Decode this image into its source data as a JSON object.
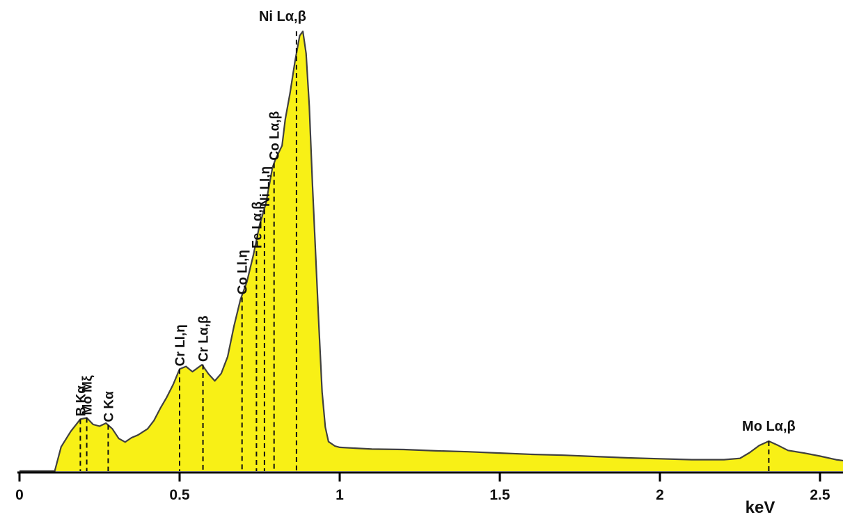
{
  "chart_data": {
    "type": "area",
    "title": "",
    "xlabel": "keV",
    "ylabel": "",
    "xlim": [
      0,
      2.6
    ],
    "ylim": [
      0,
      1
    ],
    "grid": false,
    "x_ticks": [
      0,
      0.5,
      1,
      1.5,
      2,
      2.5
    ],
    "x_tick_labels": [
      "0",
      "0.5",
      "1",
      "1.5",
      "2",
      "2.5"
    ],
    "fill_color": "#f8f016",
    "line_color": "#404040",
    "spectrum": {
      "x": [
        0.0,
        0.11,
        0.13,
        0.16,
        0.19,
        0.21,
        0.23,
        0.25,
        0.27,
        0.29,
        0.31,
        0.33,
        0.35,
        0.37,
        0.4,
        0.42,
        0.44,
        0.46,
        0.48,
        0.5,
        0.52,
        0.54,
        0.57,
        0.59,
        0.61,
        0.63,
        0.65,
        0.67,
        0.69,
        0.71,
        0.73,
        0.75,
        0.77,
        0.78,
        0.79,
        0.8,
        0.82,
        0.83,
        0.845,
        0.86,
        0.875,
        0.885,
        0.895,
        0.905,
        0.915,
        0.925,
        0.935,
        0.945,
        0.955,
        0.965,
        0.985,
        1.0,
        1.1,
        1.2,
        1.3,
        1.4,
        1.5,
        1.6,
        1.7,
        1.8,
        1.9,
        2.0,
        2.1,
        2.2,
        2.25,
        2.28,
        2.31,
        2.34,
        2.37,
        2.4,
        2.45,
        2.5,
        2.55,
        2.6
      ],
      "y": [
        0.0,
        0.0,
        0.055,
        0.09,
        0.118,
        0.121,
        0.106,
        0.102,
        0.109,
        0.096,
        0.074,
        0.066,
        0.076,
        0.082,
        0.096,
        0.115,
        0.143,
        0.168,
        0.197,
        0.232,
        0.238,
        0.226,
        0.242,
        0.221,
        0.205,
        0.222,
        0.26,
        0.33,
        0.39,
        0.43,
        0.49,
        0.56,
        0.61,
        0.65,
        0.69,
        0.71,
        0.74,
        0.8,
        0.86,
        0.93,
        0.99,
        1.0,
        0.95,
        0.83,
        0.65,
        0.49,
        0.33,
        0.18,
        0.1,
        0.067,
        0.057,
        0.054,
        0.05,
        0.049,
        0.046,
        0.044,
        0.041,
        0.038,
        0.036,
        0.033,
        0.03,
        0.028,
        0.026,
        0.026,
        0.029,
        0.042,
        0.058,
        0.068,
        0.058,
        0.047,
        0.041,
        0.034,
        0.026,
        0.021
      ]
    },
    "peak_markers": [
      {
        "label": "B Kα",
        "x": 0.19,
        "y": 0.118,
        "orientation": "vertical"
      },
      {
        "label": "Mo Mξ",
        "x": 0.21,
        "y": 0.121,
        "orientation": "vertical"
      },
      {
        "label": "C Kα",
        "x": 0.277,
        "y": 0.105,
        "orientation": "vertical"
      },
      {
        "label": "Cr Ll,η",
        "x": 0.5,
        "y": 0.232,
        "orientation": "vertical"
      },
      {
        "label": "Cr Lα,β",
        "x": 0.573,
        "y": 0.242,
        "orientation": "vertical"
      },
      {
        "label": "Co Ll,η",
        "x": 0.695,
        "y": 0.395,
        "orientation": "vertical"
      },
      {
        "label": "Fe Lα,β",
        "x": 0.74,
        "y": 0.5,
        "orientation": "vertical"
      },
      {
        "label": "Ni Ll,η",
        "x": 0.765,
        "y": 0.595,
        "orientation": "vertical"
      },
      {
        "label": "Co Lα,β",
        "x": 0.795,
        "y": 0.7,
        "orientation": "vertical"
      },
      {
        "label": "Ni Lα,β",
        "x": 0.865,
        "y": 1.0,
        "orientation": "horizontal"
      },
      {
        "label": "Mo Lα,β",
        "x": 2.34,
        "y": 0.068,
        "orientation": "horizontal"
      }
    ]
  }
}
